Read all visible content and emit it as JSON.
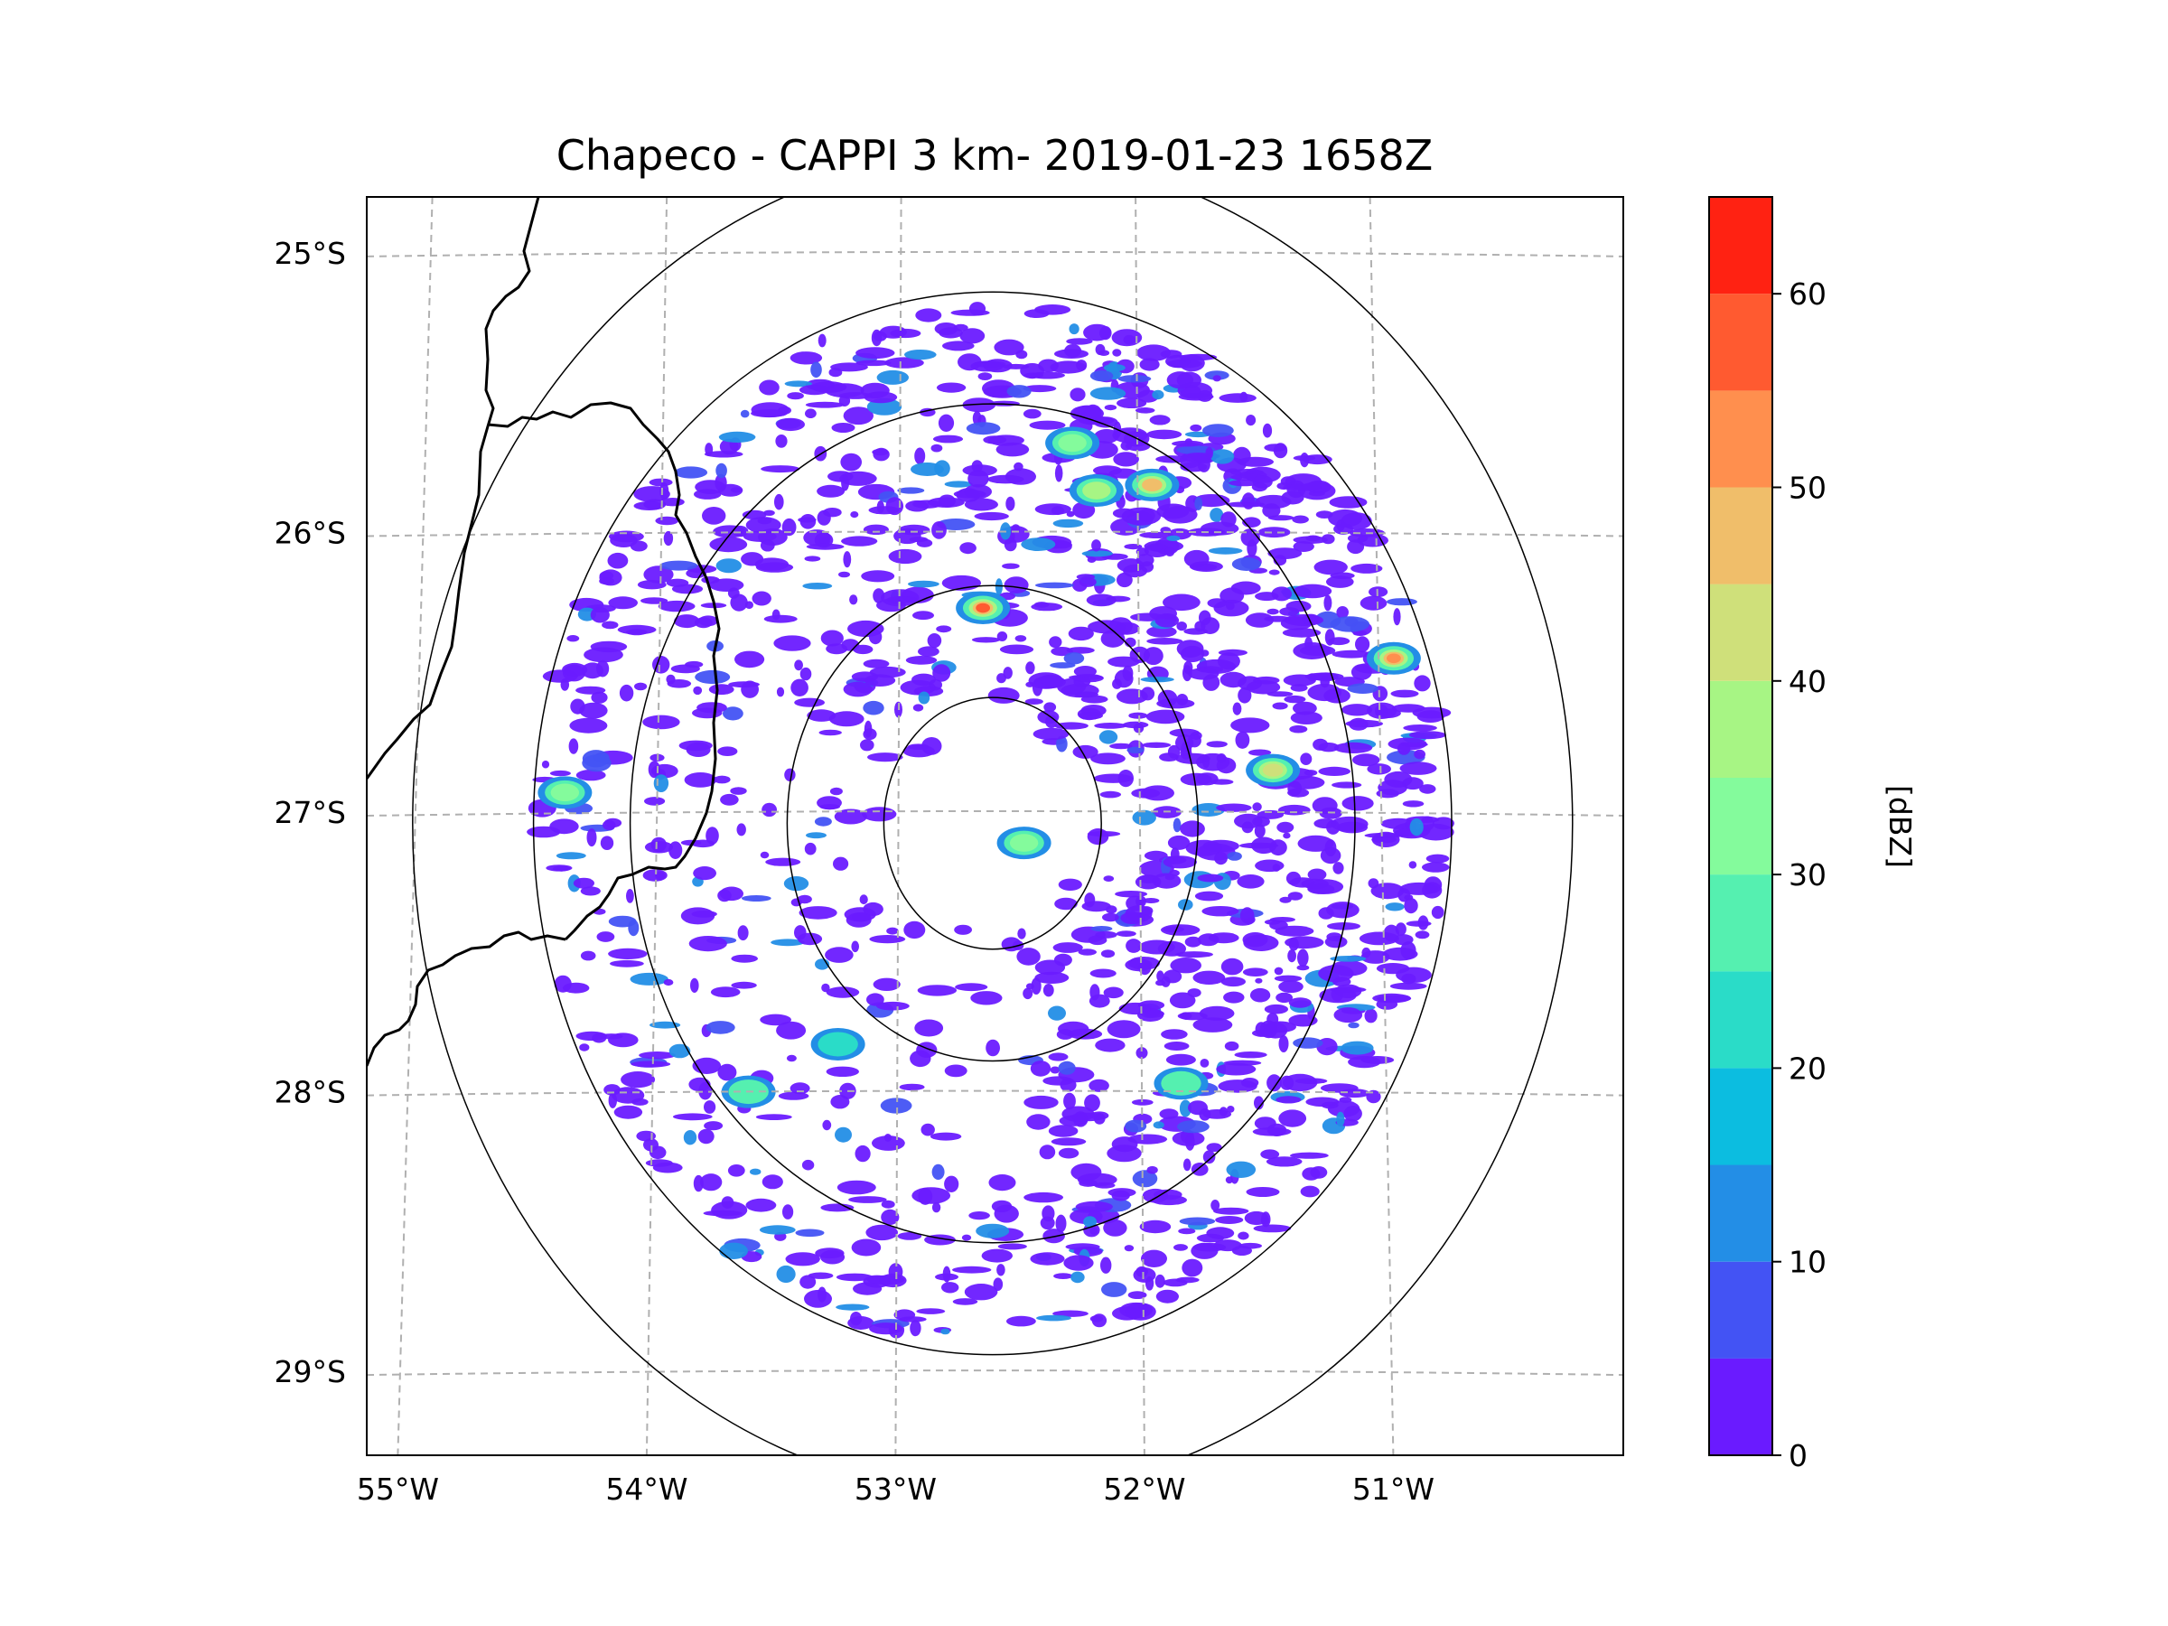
{
  "title": "Chapeco - CAPPI 3 km- 2019-01-23 1658Z",
  "map": {
    "lon_range": [
      -55.2,
      -50.0
    ],
    "lat_range": [
      -29.3,
      -24.8
    ],
    "radar_center": {
      "lon": -52.61,
      "lat": -27.04
    },
    "range_rings_deg": [
      0.45,
      0.85,
      1.5,
      1.9,
      2.4
    ],
    "lon_gridlines": [
      -55,
      -54,
      -53,
      -52,
      -51
    ],
    "lat_gridlines": [
      -25,
      -26,
      -27,
      -28,
      -29
    ],
    "lon_tick_labels": [
      "55°W",
      "54°W",
      "53°W",
      "52°W",
      "51°W"
    ],
    "lat_tick_labels": [
      "25°S",
      "26°S",
      "27°S",
      "28°S",
      "29°S"
    ]
  },
  "colorbar": {
    "label": "[dBZ]",
    "range": [
      0,
      65
    ],
    "levels": [
      0,
      5,
      10,
      15,
      20,
      25,
      30,
      35,
      40,
      45,
      50,
      55,
      60,
      65
    ],
    "colors": [
      "#6a1bff",
      "#4353f4",
      "#238ee6",
      "#0cbde0",
      "#2adcc8",
      "#55f0b0",
      "#84fb9c",
      "#a7f584",
      "#cfe07a",
      "#f0be6a",
      "#ff8f4e",
      "#ff5a30",
      "#ff2212"
    ],
    "tick_values": [
      0,
      10,
      20,
      30,
      40,
      50,
      60
    ],
    "tick_labels": [
      "0",
      "10",
      "20",
      "30",
      "40",
      "50",
      "60"
    ]
  },
  "cells": [
    {
      "lon": -52.65,
      "lat": -26.27,
      "dbz": 55
    },
    {
      "lon": -50.95,
      "lat": -26.45,
      "dbz": 50
    },
    {
      "lon": -51.95,
      "lat": -25.83,
      "dbz": 45
    },
    {
      "lon": -52.18,
      "lat": -25.85,
      "dbz": 38
    },
    {
      "lon": -52.28,
      "lat": -25.68,
      "dbz": 32
    },
    {
      "lon": -51.45,
      "lat": -26.85,
      "dbz": 40
    },
    {
      "lon": -52.48,
      "lat": -27.11,
      "dbz": 30
    },
    {
      "lon": -54.38,
      "lat": -26.93,
      "dbz": 30
    },
    {
      "lon": -51.83,
      "lat": -27.97,
      "dbz": 28
    },
    {
      "lon": -53.62,
      "lat": -28.0,
      "dbz": 25
    },
    {
      "lon": -53.25,
      "lat": -27.83,
      "dbz": 22
    }
  ]
}
